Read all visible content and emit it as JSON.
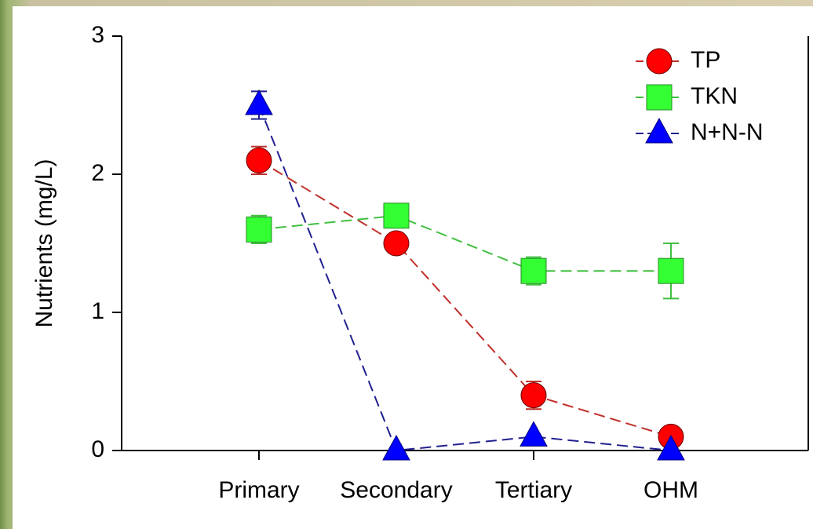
{
  "chart_data": {
    "type": "line",
    "y_label": "Nutrients (mg/L)",
    "categories": [
      "Primary",
      "Secondary",
      "Tertiary",
      "OHM"
    ],
    "ylim": [
      0,
      3
    ],
    "yticks": [
      0,
      1,
      2,
      3
    ],
    "legend": "top-right",
    "series": [
      {
        "name": "TP",
        "marker": "circle",
        "color": "#ff0000",
        "line_color": "#c0302a",
        "values": [
          2.1,
          1.5,
          0.4,
          0.1
        ],
        "errors": [
          0.1,
          0.02,
          0.1,
          0.05
        ]
      },
      {
        "name": "TKN",
        "marker": "square",
        "color": "#33ff33",
        "line_color": "#40c040",
        "values": [
          1.6,
          1.7,
          1.3,
          1.3
        ],
        "errors": [
          0.1,
          0.05,
          0.1,
          0.2
        ]
      },
      {
        "name": "N+N-N",
        "marker": "triangle",
        "color": "#0000ff",
        "line_color": "#202090",
        "values": [
          2.5,
          0,
          0.1,
          0
        ],
        "errors": [
          0.1,
          0,
          0,
          0
        ]
      }
    ]
  }
}
